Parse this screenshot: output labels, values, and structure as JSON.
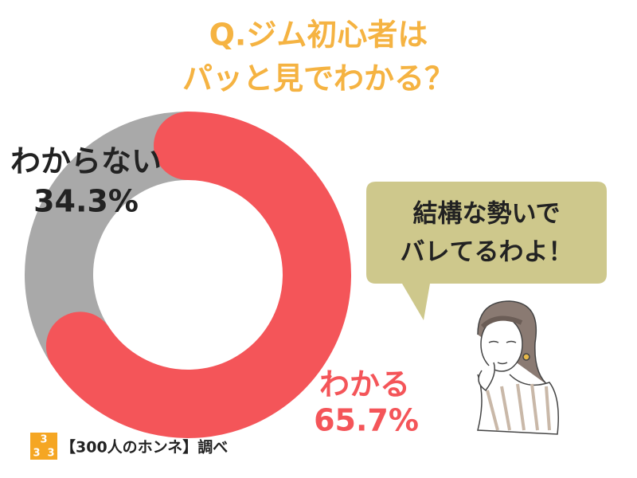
{
  "chart_data": {
    "type": "donut",
    "title": [
      "Q.ジム初心者は",
      "パッと見でわかる？"
    ],
    "categories": [
      "わかる",
      "わからない"
    ],
    "values": [
      65.7,
      34.3
    ],
    "value_labels": [
      "65.7%",
      "34.3%"
    ],
    "colors": [
      "#f45559",
      "#a9a9a9"
    ],
    "label_colors": [
      "#f45559",
      "#222222"
    ],
    "annotation": [
      "結構な勢いで",
      "バレてるわよ！"
    ],
    "source": "【300人のホンネ】調べ",
    "logo": [
      "3",
      "3",
      "3"
    ]
  }
}
